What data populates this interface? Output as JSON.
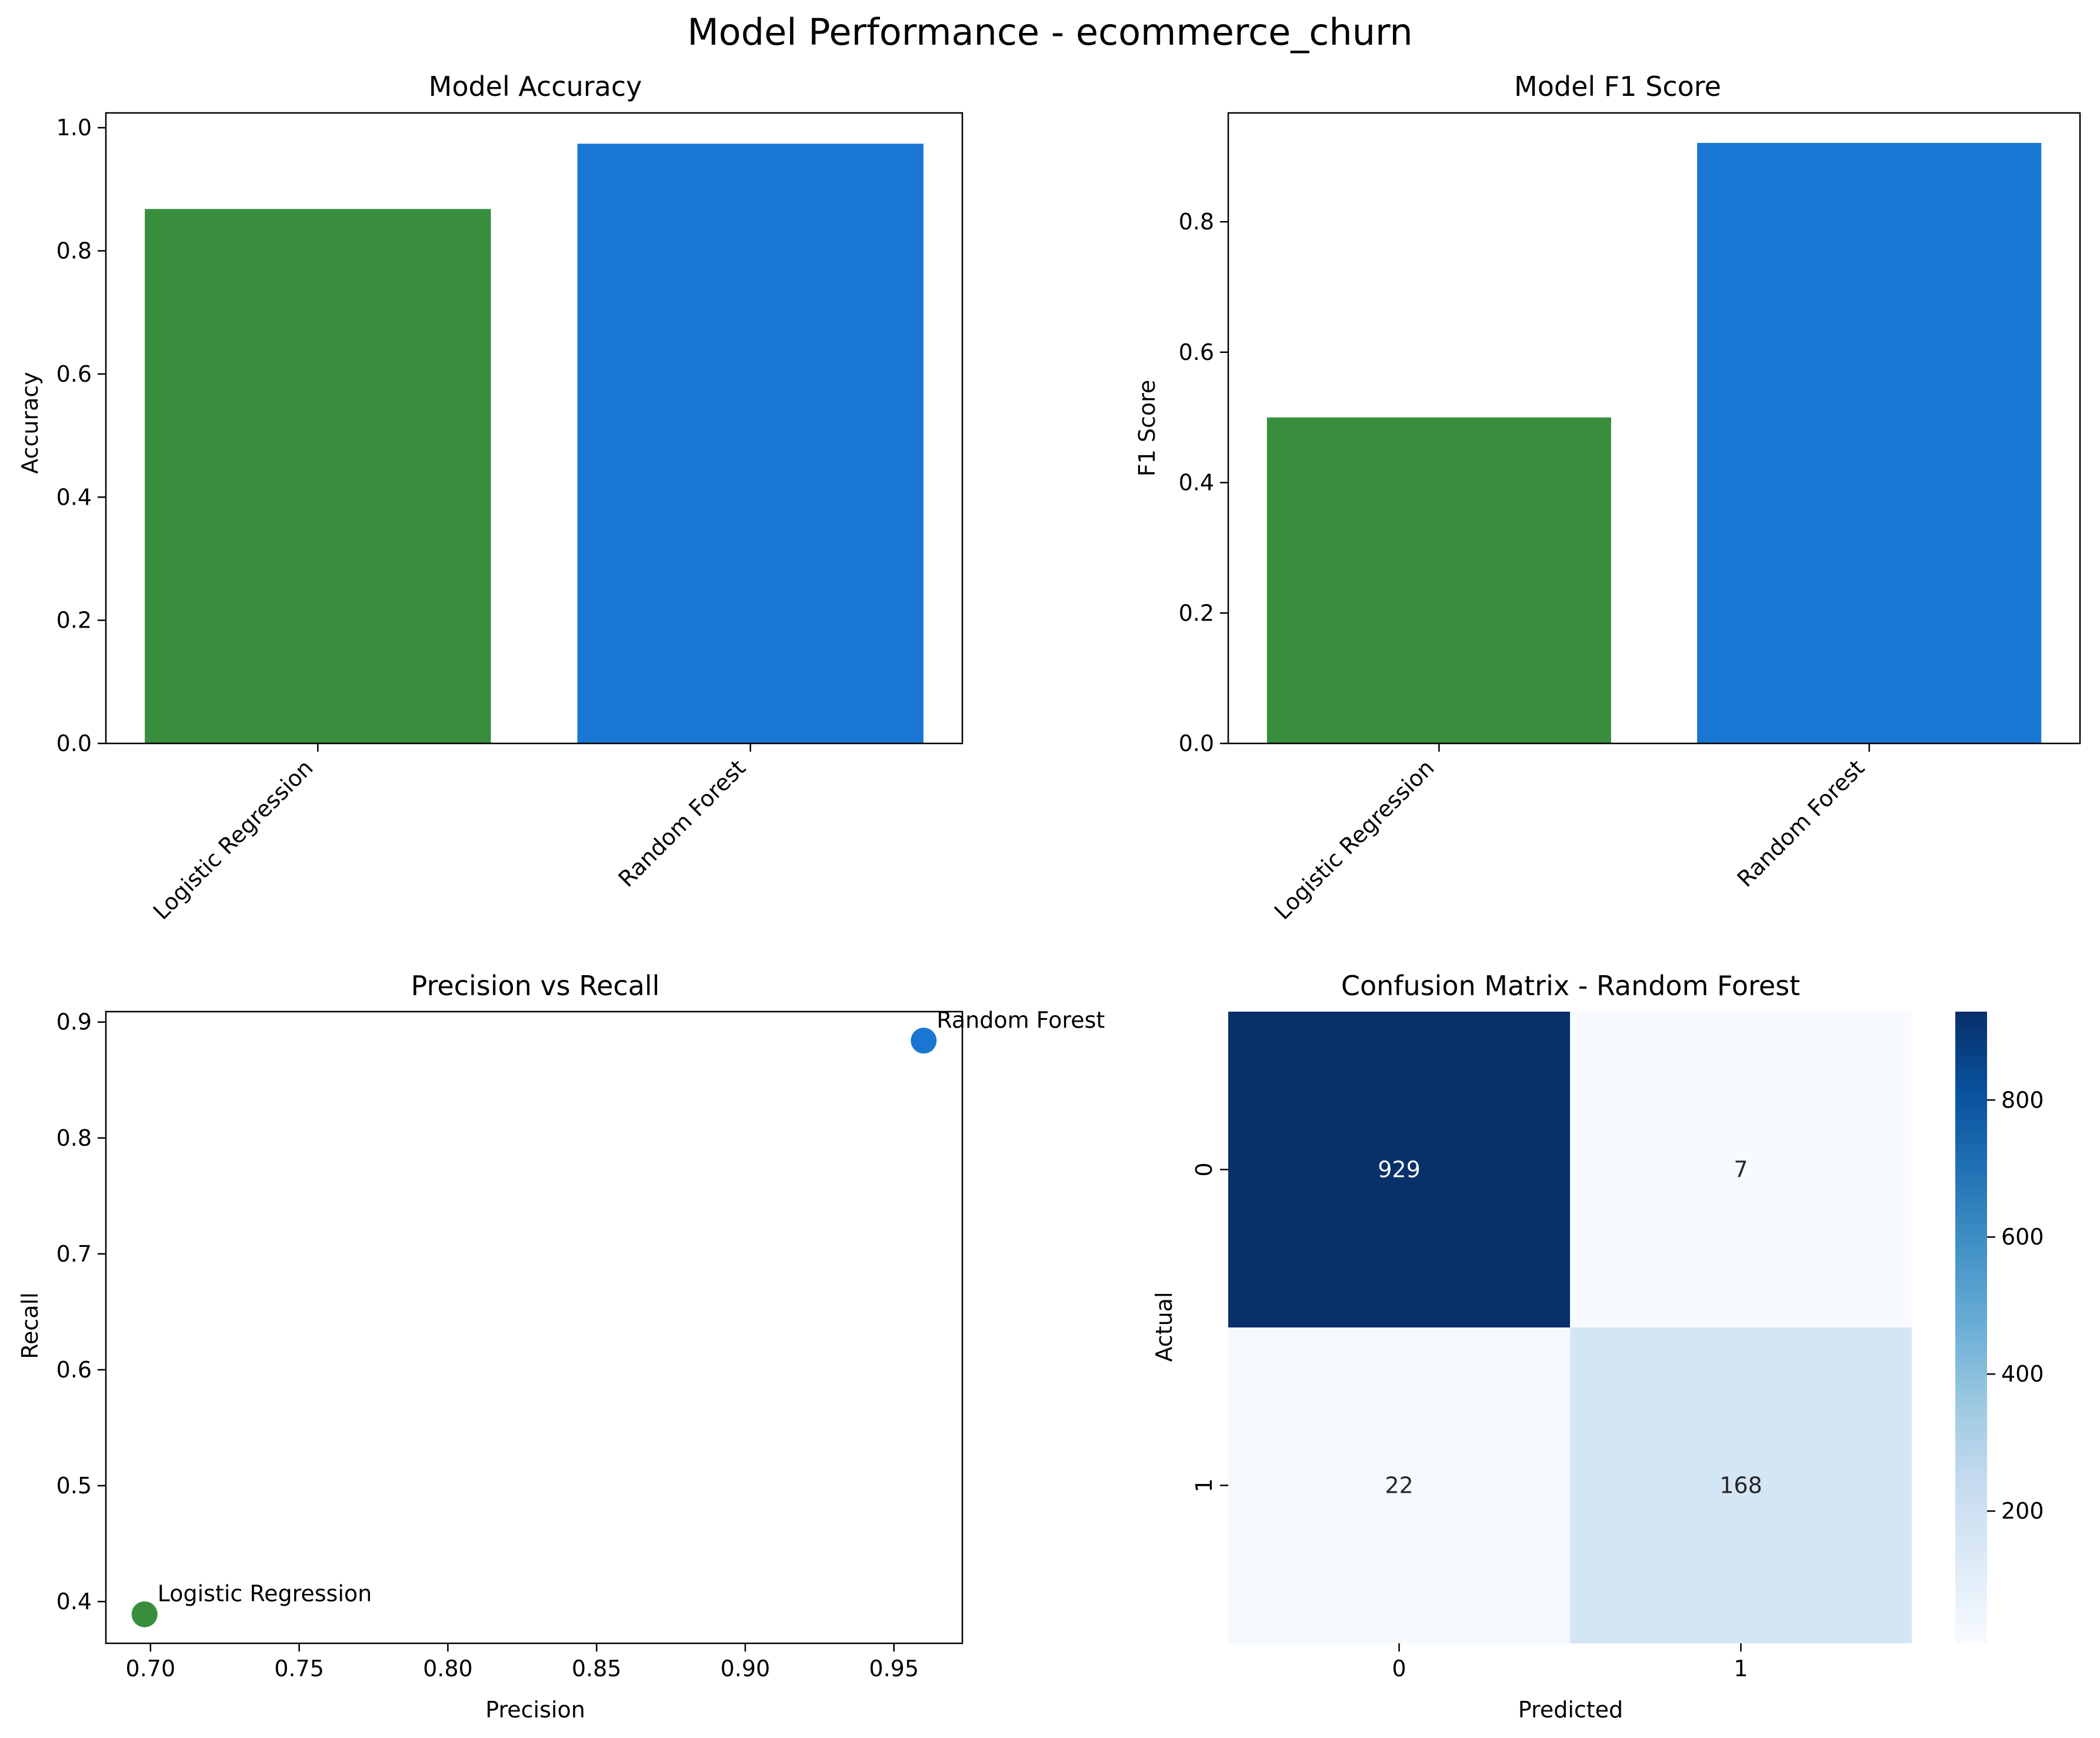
{
  "figure": {
    "title": "Model Performance - ecommerce_churn"
  },
  "chart_data": [
    {
      "type": "bar",
      "title": "Model Accuracy",
      "xlabel": "",
      "ylabel": "Accuracy",
      "categories": [
        "Logistic Regression",
        "Random Forest"
      ],
      "values": [
        0.868,
        0.974
      ],
      "colors": [
        "#388e3c",
        "#1976d2"
      ],
      "ylim": [
        0,
        1.024
      ],
      "yticks": [
        "0.0",
        "0.2",
        "0.4",
        "0.6",
        "0.8",
        "1.0"
      ],
      "ytick_values": [
        0,
        0.2,
        0.4,
        0.6,
        0.8,
        1.0
      ],
      "xtick_rotation": 45,
      "grid": false
    },
    {
      "type": "bar",
      "title": "Model F1 Score",
      "xlabel": "",
      "ylabel": "F1 Score",
      "categories": [
        "Logistic Regression",
        "Random Forest"
      ],
      "values": [
        0.5,
        0.921
      ],
      "colors": [
        "#388e3c",
        "#1976d2"
      ],
      "ylim": [
        0,
        0.967
      ],
      "yticks": [
        "0.0",
        "0.2",
        "0.4",
        "0.6",
        "0.8"
      ],
      "ytick_values": [
        0,
        0.2,
        0.4,
        0.6,
        0.8
      ],
      "xtick_rotation": 45,
      "grid": false
    },
    {
      "type": "scatter",
      "title": "Precision vs Recall",
      "xlabel": "Precision",
      "ylabel": "Recall",
      "points": [
        {
          "x": 0.698,
          "y": 0.389,
          "label": "Logistic Regression",
          "color": "#388e3c"
        },
        {
          "x": 0.96,
          "y": 0.884,
          "label": "Random Forest",
          "color": "#1976d2"
        }
      ],
      "xlim": [
        0.685,
        0.973
      ],
      "ylim": [
        0.364,
        0.909
      ],
      "xticks": [
        "0.70",
        "0.75",
        "0.80",
        "0.85",
        "0.90",
        "0.95"
      ],
      "xtick_values": [
        0.7,
        0.75,
        0.8,
        0.85,
        0.9,
        0.95
      ],
      "yticks": [
        "0.4",
        "0.5",
        "0.6",
        "0.7",
        "0.8",
        "0.9"
      ],
      "ytick_values": [
        0.4,
        0.5,
        0.6,
        0.7,
        0.8,
        0.9
      ],
      "grid": false
    },
    {
      "type": "heatmap",
      "title": "Confusion Matrix - Random Forest",
      "xlabel": "Predicted",
      "ylabel": "Actual",
      "x_categories": [
        "0",
        "1"
      ],
      "y_categories": [
        "0",
        "1"
      ],
      "matrix": [
        [
          929,
          7
        ],
        [
          22,
          168
        ]
      ],
      "labels": [
        [
          "929",
          "7"
        ],
        [
          "22",
          "168"
        ]
      ],
      "colormap": "Blues",
      "vmin": 7,
      "vmax": 929,
      "colorbar_ticks": [
        "200",
        "400",
        "600",
        "800"
      ],
      "colorbar_tick_values": [
        200,
        400,
        600,
        800
      ]
    }
  ]
}
